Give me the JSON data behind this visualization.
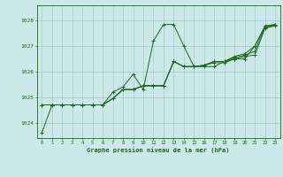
{
  "xlabel": "Graphe pression niveau de la mer (hPa)",
  "xlim": [
    -0.5,
    23.5
  ],
  "ylim": [
    1023.4,
    1028.6
  ],
  "yticks": [
    1024,
    1025,
    1026,
    1027,
    1028
  ],
  "xticks": [
    0,
    1,
    2,
    3,
    4,
    5,
    6,
    7,
    8,
    9,
    10,
    11,
    12,
    13,
    14,
    15,
    16,
    17,
    18,
    19,
    20,
    21,
    22,
    23
  ],
  "background_color": "#cce8e8",
  "grid_color": "#aacccc",
  "line_color": "#1a6b1a",
  "series": [
    [
      1023.6,
      1024.7,
      1024.7,
      1024.7,
      1024.7,
      1024.7,
      1024.7,
      1025.2,
      1025.4,
      1025.9,
      1025.3,
      1027.2,
      1027.85,
      1027.85,
      1027.0,
      1026.2,
      1026.2,
      1026.2,
      1026.4,
      1026.5,
      1026.5,
      1027.0,
      1027.8,
      1027.85
    ],
    [
      1024.7,
      1024.7,
      1024.7,
      1024.7,
      1024.7,
      1024.7,
      1024.7,
      1024.95,
      1025.3,
      1025.3,
      1025.45,
      1025.45,
      1025.45,
      1026.4,
      1026.2,
      1026.2,
      1026.25,
      1026.35,
      1026.35,
      1026.5,
      1026.6,
      1026.65,
      1027.7,
      1027.8
    ],
    [
      1024.7,
      1024.7,
      1024.7,
      1024.7,
      1024.7,
      1024.7,
      1024.7,
      1024.95,
      1025.3,
      1025.3,
      1025.45,
      1025.45,
      1025.45,
      1026.4,
      1026.2,
      1026.2,
      1026.25,
      1026.4,
      1026.4,
      1026.55,
      1026.65,
      1026.8,
      1027.75,
      1027.8
    ],
    [
      1024.7,
      1024.7,
      1024.7,
      1024.7,
      1024.7,
      1024.7,
      1024.7,
      1024.95,
      1025.3,
      1025.3,
      1025.45,
      1025.45,
      1025.45,
      1026.4,
      1026.2,
      1026.2,
      1026.25,
      1026.4,
      1026.4,
      1026.6,
      1026.7,
      1027.0,
      1027.75,
      1027.85
    ]
  ]
}
